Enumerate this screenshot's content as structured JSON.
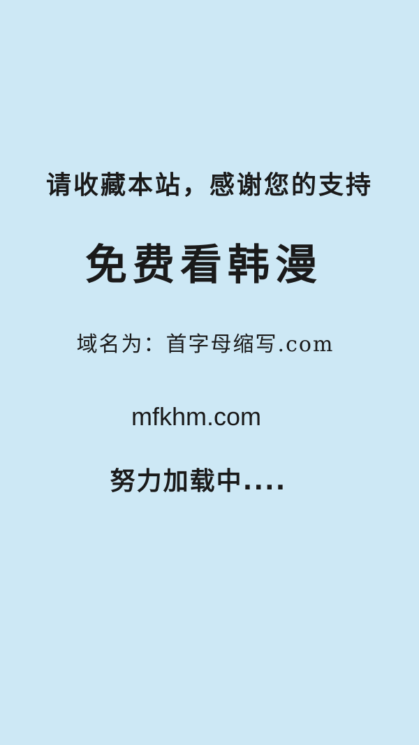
{
  "splash": {
    "bookmark_prompt": "请收藏本站，感谢您的支持",
    "site_name": "免费看韩漫",
    "domain_hint": "域名为：首字母缩写.com",
    "domain": "mfkhm.com",
    "loading_text": "努力加载中...."
  },
  "colors": {
    "background": "#cde8f5",
    "text": "#1a1a1a"
  }
}
